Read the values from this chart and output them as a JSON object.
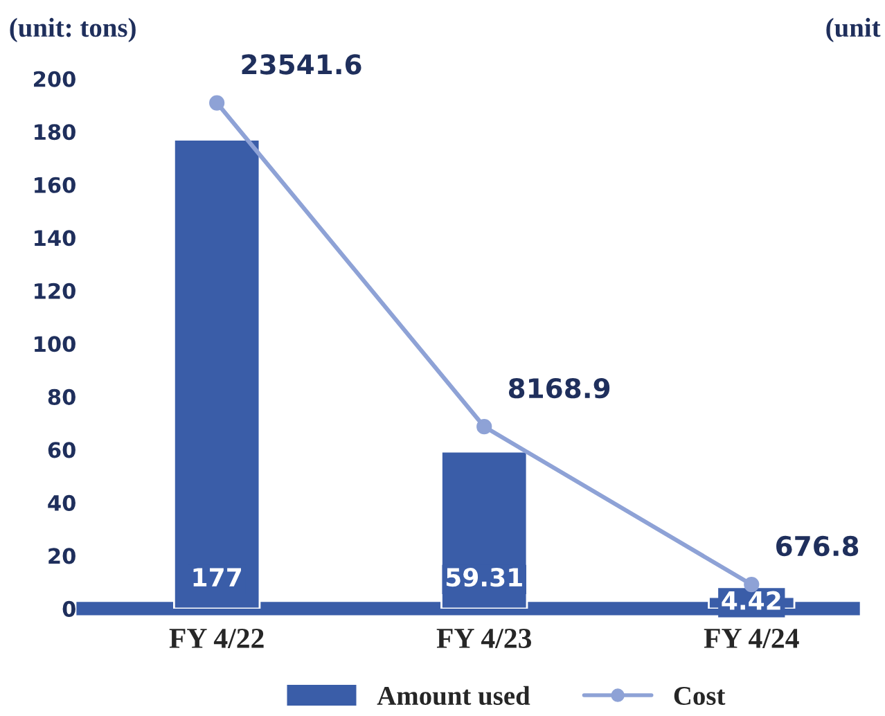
{
  "chart_data": {
    "type": "bar",
    "categories": [
      "FY 4/22",
      "FY 4/23",
      "FY 4/24"
    ],
    "ylabel": "(unit: tons)",
    "y2label": "(unit",
    "series": [
      {
        "name": "Amount used",
        "color": "#3a5da8",
        "values": [
          177,
          59.31,
          4.42
        ]
      },
      {
        "name": "Cost",
        "type": "line",
        "axis": "y2",
        "color": "#8ea2d6",
        "values": [
          23541.6,
          8168.9,
          676.8
        ]
      }
    ],
    "ylim": [
      0,
      200
    ],
    "yticks": [
      0,
      20,
      40,
      60,
      80,
      100,
      120,
      140,
      160,
      180,
      200
    ],
    "data_labels": true,
    "grid": false,
    "legend": "bottom",
    "marker": "circle",
    "line_style": "solid"
  }
}
